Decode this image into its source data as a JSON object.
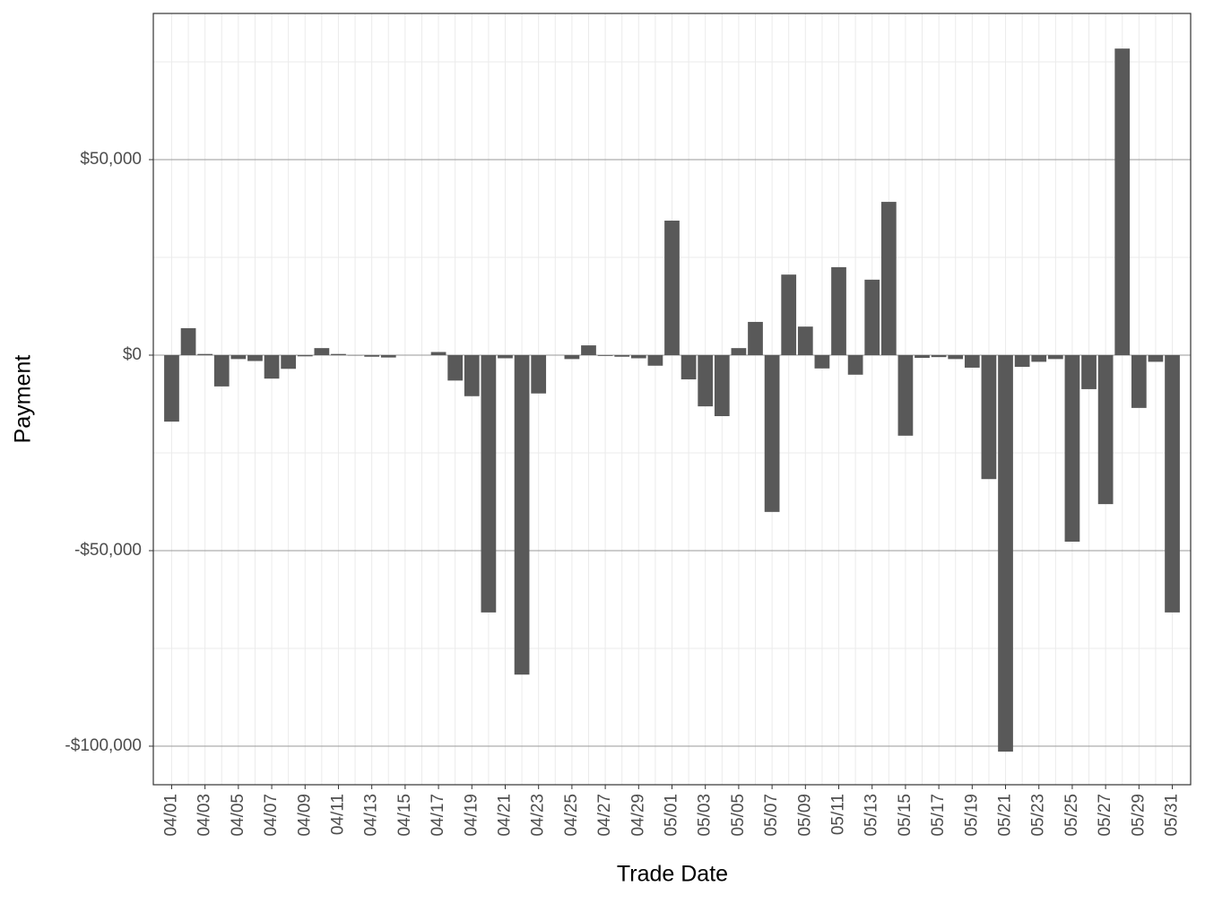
{
  "chart_data": {
    "type": "bar",
    "x_label": "Trade Date",
    "y_label": "Payment",
    "categories": [
      "04/01",
      null,
      "04/03",
      null,
      "04/05",
      null,
      "04/07",
      null,
      "04/09",
      null,
      "04/11",
      null,
      "04/13",
      null,
      "04/15",
      null,
      "04/17",
      null,
      "04/19",
      null,
      "04/21",
      null,
      "04/23",
      null,
      "04/25",
      null,
      "04/27",
      null,
      "04/29",
      null,
      "05/01",
      null,
      "05/03",
      null,
      "05/05",
      null,
      "05/07",
      null,
      "05/09",
      null,
      "05/11",
      null,
      "05/13",
      null,
      "05/15",
      null,
      "05/17",
      null,
      "05/19",
      null,
      "05/21",
      null,
      "05/23",
      null,
      "05/25",
      null,
      "05/27",
      null,
      "05/29",
      null,
      "05/31"
    ],
    "values": [
      -17000,
      6900,
      300,
      -8000,
      -1000,
      -1500,
      -6000,
      -3500,
      -300,
      1800,
      300,
      -100,
      -400,
      -600,
      0,
      0,
      800,
      -6500,
      -10500,
      -65800,
      -800,
      -81700,
      -9800,
      0,
      -1000,
      2500,
      -200,
      -400,
      -800,
      -2700,
      34400,
      -6200,
      -13100,
      -15600,
      1800,
      8500,
      -40100,
      20600,
      7300,
      -3400,
      22500,
      -5000,
      19300,
      39200,
      -20600,
      -700,
      -500,
      -1000,
      -3200,
      -31700,
      -101400,
      -3000,
      -1700,
      -1000,
      -47700,
      -8700,
      -38100,
      78400,
      -13500,
      -1700,
      -65800
    ],
    "color": "#595959",
    "ylim": [
      -109862,
      87385
    ],
    "yticks": [
      {
        "value": -100000,
        "label": "-$100,000"
      },
      {
        "value": -50000,
        "label": "-$50,000"
      },
      {
        "value": 0,
        "label": "$0"
      },
      {
        "value": 50000,
        "label": "$50,000"
      }
    ],
    "grid": true
  }
}
